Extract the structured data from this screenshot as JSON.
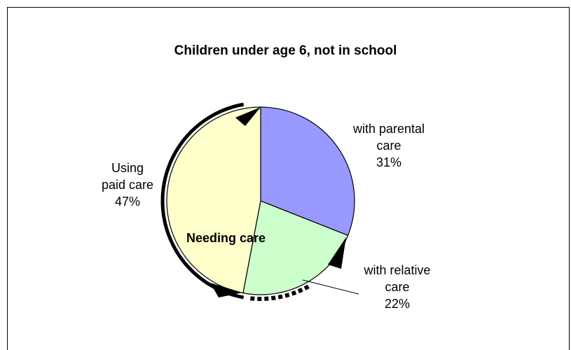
{
  "chart_data": {
    "type": "pie",
    "title": "Children under age 6, not in school",
    "slices": [
      {
        "label_lines": [
          "with parental",
          "care",
          "31%"
        ],
        "value": 31,
        "color": "#9999ff"
      },
      {
        "label_lines": [
          "with relative",
          "care",
          "22%"
        ],
        "value": 22,
        "color": "#ccffcc"
      },
      {
        "label_lines": [
          "Using",
          "paid care",
          "47%"
        ],
        "value": 47,
        "color": "#ffffcc"
      }
    ],
    "annotation": "Needing care",
    "legend": "none",
    "grid": false
  }
}
